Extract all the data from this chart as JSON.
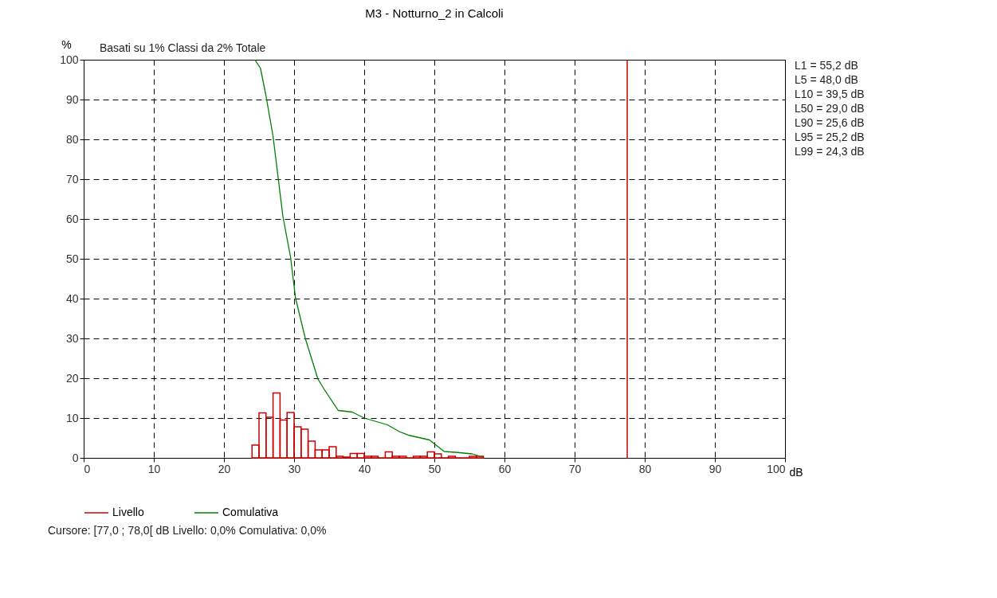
{
  "chart_data": {
    "type": "histogram",
    "title": "M3 - Notturno_2 in Calcoli",
    "subtitle": "Basati su 1%   Classi da 2% Totale",
    "xlabel": "dB",
    "ylabel": "%",
    "bins": [
      24,
      25,
      26,
      27,
      28,
      29,
      30,
      31,
      32,
      33,
      34,
      35,
      36,
      37,
      38,
      39,
      40,
      41,
      42,
      43,
      44,
      45,
      46,
      47,
      48,
      49,
      50,
      51,
      52,
      53,
      54,
      55,
      56,
      57
    ],
    "series": [
      {
        "name": "Livello",
        "color": "#cc0000",
        "values": [
          3.2,
          11.3,
          10.2,
          16.3,
          9.5,
          11.4,
          7.8,
          7.2,
          4.2,
          2.0,
          2.0,
          2.8,
          0.4,
          0.2,
          1.1,
          1.1,
          0.4,
          0.4,
          0,
          1.5,
          0.4,
          0.4,
          0,
          0.4,
          0.4,
          1.5,
          1.0,
          0,
          0.4,
          0,
          0,
          0.4,
          0.4
        ]
      },
      {
        "name": "Comulativa",
        "type": "line",
        "color": "#008000",
        "x": [
          24.4,
          25.2,
          26.0,
          27.0,
          27.7,
          28.4,
          29.5,
          30.2,
          31.6,
          33.4,
          34.3,
          36.3,
          38.3,
          40.0,
          43.3,
          45.0,
          46.3,
          49.3,
          51.4,
          53.0,
          55.4,
          56.9
        ],
        "values": [
          100,
          97.9,
          90.9,
          80.8,
          70.8,
          60.7,
          50.4,
          40.2,
          30.0,
          19.8,
          17.2,
          11.9,
          11.5,
          10.0,
          8.3,
          6.6,
          5.7,
          4.5,
          1.6,
          1.4,
          1.0,
          0.2
        ]
      }
    ],
    "xlim": [
      0,
      100
    ],
    "ylim": [
      0,
      100
    ],
    "xticks": [
      0,
      10,
      20,
      30,
      40,
      50,
      60,
      70,
      80,
      90,
      100
    ],
    "yticks": [
      0,
      10,
      20,
      30,
      40,
      50,
      60,
      70,
      80,
      90,
      100
    ],
    "ref_lines": [
      {
        "axis": "x",
        "value": 77.5,
        "color": "#cc0000"
      }
    ],
    "grid": true,
    "legend": "bottom",
    "annotations": [
      "L1   =  55,2 dB",
      "L5   =  48,0 dB",
      "L10 =  39,5 dB",
      "L50 =  29,0 dB",
      "L90 =  25,6 dB",
      "L95 =  25,2 dB",
      "L99 =  24,3 dB",
      "Cursore: [77,0 ; 78,0[ dB   Livello: 0,0%   Comulativa: 0,0%"
    ]
  }
}
